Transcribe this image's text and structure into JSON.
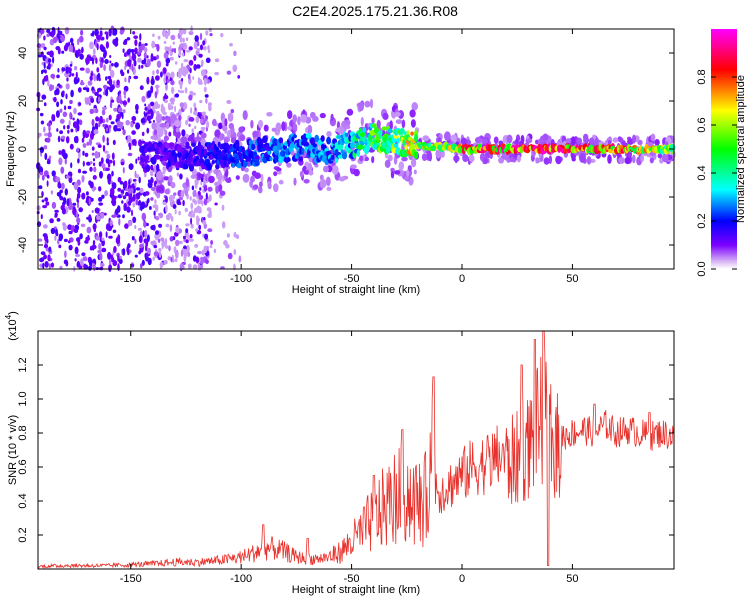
{
  "title": "C2E4.2025.175.21.36.R08",
  "chart_data": [
    {
      "type": "heatmap",
      "xlabel": "Height of straight line (km)",
      "ylabel": "Frequency (Hz)",
      "xlim": [
        -192,
        96
      ],
      "ylim": [
        -50,
        50
      ],
      "xticks": [
        "-150",
        "-100",
        "-50",
        "0",
        "50"
      ],
      "xtick_values": [
        -150,
        -100,
        -50,
        0,
        50
      ],
      "yticks": [
        "-40",
        "-20",
        "0",
        "20",
        "40"
      ],
      "ytick_values": [
        -40,
        -20,
        0,
        20,
        40
      ],
      "colorbar": {
        "label": "Normalized spectral amplitude",
        "range": [
          0,
          1
        ],
        "ticks": [
          "0.0",
          "0.2",
          "0.4",
          "0.6",
          "0.8"
        ],
        "tick_values": [
          0.0,
          0.2,
          0.4,
          0.6,
          0.8
        ]
      },
      "ridge": {
        "x": [
          -145,
          -120,
          -100,
          -80,
          -70,
          -60,
          -50,
          -40,
          -30,
          -20,
          -15,
          -10,
          0,
          20,
          40,
          60,
          80,
          96
        ],
        "frequency": [
          -3,
          -3,
          -2,
          0,
          1,
          -1,
          2,
          5,
          3,
          2,
          1,
          1,
          0,
          0,
          0,
          0,
          0,
          0
        ],
        "amplitude": [
          0.15,
          0.2,
          0.25,
          0.3,
          0.3,
          0.3,
          0.4,
          0.55,
          0.6,
          0.75,
          0.6,
          0.7,
          0.85,
          0.9,
          0.9,
          0.85,
          0.8,
          0.55
        ]
      }
    },
    {
      "type": "line",
      "xlabel": "Height of straight line (km)",
      "ylabel": "SNR (10 * v/v)",
      "scale_note": "(x10",
      "scale_exp": "4",
      "xlim": [
        -192,
        96
      ],
      "ylim": [
        0,
        1.4
      ],
      "xticks": [
        "-150",
        "-100",
        "-50",
        "0",
        "50"
      ],
      "xtick_values": [
        -150,
        -100,
        -50,
        0,
        50
      ],
      "yticks": [
        "0.2",
        "0.4",
        "0.6",
        "0.8",
        "1.0",
        "1.2"
      ],
      "ytick_values": [
        0.2,
        0.4,
        0.6,
        0.8,
        1.0,
        1.2
      ],
      "series": [
        {
          "color": "#e8312b",
          "x": [
            -192,
            -180,
            -160,
            -140,
            -130,
            -120,
            -110,
            -100,
            -95,
            -90,
            -85,
            -80,
            -75,
            -70,
            -65,
            -60,
            -55,
            -50,
            -45,
            -40,
            -35,
            -30,
            -25,
            -20,
            -15,
            -13,
            -12,
            -10,
            -5,
            0,
            5,
            10,
            15,
            20,
            25,
            30,
            35,
            38,
            40,
            45,
            50,
            55,
            60,
            65,
            70,
            75,
            80,
            85,
            90,
            96
          ],
          "values": [
            0.015,
            0.02,
            0.02,
            0.03,
            0.04,
            0.04,
            0.05,
            0.07,
            0.09,
            0.12,
            0.12,
            0.1,
            0.07,
            0.06,
            0.06,
            0.07,
            0.1,
            0.16,
            0.22,
            0.3,
            0.36,
            0.42,
            0.45,
            0.38,
            0.42,
            1.1,
            0.5,
            0.45,
            0.5,
            0.55,
            0.6,
            0.62,
            0.65,
            0.68,
            0.72,
            0.8,
            0.95,
            1.0,
            0.85,
            0.78,
            0.8,
            0.82,
            0.8,
            0.85,
            0.8,
            0.82,
            0.8,
            0.78,
            0.8,
            0.78
          ],
          "peaks": [
            {
              "x": -90,
              "v": 0.26
            },
            {
              "x": -70,
              "v": 0.18
            },
            {
              "x": -40,
              "v": 0.55
            },
            {
              "x": -27,
              "v": 0.82
            },
            {
              "x": -13,
              "v": 1.13
            },
            {
              "x": 27,
              "v": 1.2
            },
            {
              "x": 33,
              "v": 1.35
            },
            {
              "x": 37,
              "v": 1.4
            },
            {
              "x": 39,
              "v": 0.02
            },
            {
              "x": 60,
              "v": 0.97
            },
            {
              "x": 85,
              "v": 0.92
            }
          ]
        }
      ]
    }
  ]
}
